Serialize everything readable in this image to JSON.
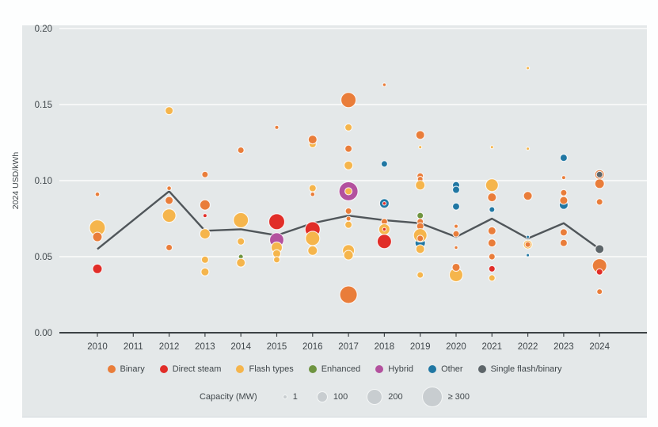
{
  "chart_data": {
    "type": "scatter",
    "title": "",
    "ylabel": "2024 USD/kWh",
    "ylim": [
      0.0,
      0.2
    ],
    "y_ticks": [
      "0.00",
      "0.05",
      "0.10",
      "0.15",
      "0.20"
    ],
    "grid": true,
    "years": [
      2010,
      2011,
      2012,
      2013,
      2014,
      2015,
      2016,
      2017,
      2018,
      2019,
      2020,
      2021,
      2022,
      2023,
      2024
    ],
    "categories": [
      {
        "key": "binary",
        "label": "Binary",
        "color": "#e97d3a"
      },
      {
        "key": "direct",
        "label": "Direct steam",
        "color": "#e12d28"
      },
      {
        "key": "flash",
        "label": "Flash types",
        "color": "#f5b54c"
      },
      {
        "key": "enhanced",
        "label": "Enhanced",
        "color": "#6e9440"
      },
      {
        "key": "hybrid",
        "label": "Hybrid",
        "color": "#b3519e"
      },
      {
        "key": "other",
        "label": "Other",
        "color": "#2077a3"
      },
      {
        "key": "single",
        "label": "Single flash/binary",
        "color": "#5d6569"
      }
    ],
    "trend_line": {
      "color": "#50565a",
      "values": [
        0.055,
        0.074,
        0.093,
        0.067,
        0.068,
        0.064,
        0.072,
        0.077,
        0.074,
        0.072,
        0.063,
        0.075,
        0.062,
        0.072,
        0.055
      ]
    },
    "bubbles": [
      {
        "y": 2010,
        "v": 0.091,
        "c": "binary",
        "r": 2.8
      },
      {
        "y": 2010,
        "v": 0.069,
        "c": "flash",
        "r": 10
      },
      {
        "y": 2010,
        "v": 0.063,
        "c": "binary",
        "r": 6
      },
      {
        "y": 2010,
        "v": 0.042,
        "c": "direct",
        "r": 6
      },
      {
        "y": 2012,
        "v": 0.146,
        "c": "flash",
        "r": 5
      },
      {
        "y": 2012,
        "v": 0.095,
        "c": "binary",
        "r": 2.8
      },
      {
        "y": 2012,
        "v": 0.087,
        "c": "binary",
        "r": 5
      },
      {
        "y": 2012,
        "v": 0.077,
        "c": "flash",
        "r": 8.5
      },
      {
        "y": 2012,
        "v": 0.056,
        "c": "binary",
        "r": 4
      },
      {
        "y": 2013,
        "v": 0.104,
        "c": "binary",
        "r": 4
      },
      {
        "y": 2013,
        "v": 0.084,
        "c": "binary",
        "r": 6.5
      },
      {
        "y": 2013,
        "v": 0.077,
        "c": "direct",
        "r": 2.5
      },
      {
        "y": 2013,
        "v": 0.065,
        "c": "flash",
        "r": 6.5
      },
      {
        "y": 2013,
        "v": 0.048,
        "c": "flash",
        "r": 4.5
      },
      {
        "y": 2013,
        "v": 0.04,
        "c": "flash",
        "r": 5
      },
      {
        "y": 2014,
        "v": 0.12,
        "c": "binary",
        "r": 4
      },
      {
        "y": 2014,
        "v": 0.074,
        "c": "flash",
        "r": 9.5
      },
      {
        "y": 2014,
        "v": 0.06,
        "c": "flash",
        "r": 4.5
      },
      {
        "y": 2014,
        "v": 0.05,
        "c": "enhanced",
        "r": 3
      },
      {
        "y": 2014,
        "v": 0.046,
        "c": "flash",
        "r": 5.5
      },
      {
        "y": 2015,
        "v": 0.135,
        "c": "binary",
        "r": 2.5
      },
      {
        "y": 2015,
        "v": 0.073,
        "c": "direct",
        "r": 10
      },
      {
        "y": 2015,
        "v": 0.061,
        "c": "hybrid",
        "r": 9
      },
      {
        "y": 2015,
        "v": 0.056,
        "c": "flash",
        "r": 7
      },
      {
        "y": 2015,
        "v": 0.052,
        "c": "flash",
        "r": 5
      },
      {
        "y": 2015,
        "v": 0.048,
        "c": "flash",
        "r": 4
      },
      {
        "y": 2016,
        "v": 0.124,
        "c": "flash",
        "r": 4.5
      },
      {
        "y": 2016,
        "v": 0.127,
        "c": "binary",
        "r": 5.5
      },
      {
        "y": 2016,
        "v": 0.095,
        "c": "flash",
        "r": 4.5
      },
      {
        "y": 2016,
        "v": 0.091,
        "c": "binary",
        "r": 2.8
      },
      {
        "y": 2016,
        "v": 0.068,
        "c": "direct",
        "r": 9.5
      },
      {
        "y": 2016,
        "v": 0.062,
        "c": "flash",
        "r": 9
      },
      {
        "y": 2016,
        "v": 0.054,
        "c": "flash",
        "r": 6
      },
      {
        "y": 2017,
        "v": 0.153,
        "c": "binary",
        "r": 9.5
      },
      {
        "y": 2017,
        "v": 0.135,
        "c": "flash",
        "r": 4.5
      },
      {
        "y": 2017,
        "v": 0.121,
        "c": "binary",
        "r": 4.5
      },
      {
        "y": 2017,
        "v": 0.11,
        "c": "flash",
        "r": 5.5
      },
      {
        "y": 2017,
        "v": 0.093,
        "c": "hybrid",
        "r": 12
      },
      {
        "y": 2017,
        "v": 0.093,
        "c": "flash",
        "r": 4.5
      },
      {
        "y": 2017,
        "v": 0.08,
        "c": "binary",
        "r": 4
      },
      {
        "y": 2017,
        "v": 0.075,
        "c": "binary",
        "r": 3
      },
      {
        "y": 2017,
        "v": 0.071,
        "c": "flash",
        "r": 4.5
      },
      {
        "y": 2017,
        "v": 0.054,
        "c": "flash",
        "r": 7.5
      },
      {
        "y": 2017,
        "v": 0.051,
        "c": "flash",
        "r": 6
      },
      {
        "y": 2017,
        "v": 0.025,
        "c": "binary",
        "r": 11
      },
      {
        "y": 2018,
        "v": 0.163,
        "c": "binary",
        "r": 2.2
      },
      {
        "y": 2018,
        "v": 0.111,
        "c": "other",
        "r": 4
      },
      {
        "y": 2018,
        "v": 0.085,
        "c": "other",
        "r": 6
      },
      {
        "y": 2018,
        "v": 0.085,
        "c": "direct",
        "r": 2.2
      },
      {
        "y": 2018,
        "v": 0.073,
        "c": "binary",
        "r": 4
      },
      {
        "y": 2018,
        "v": 0.068,
        "c": "flash",
        "r": 7
      },
      {
        "y": 2018,
        "v": 0.068,
        "c": "direct",
        "r": 2.2
      },
      {
        "y": 2018,
        "v": 0.06,
        "c": "direct",
        "r": 9
      },
      {
        "y": 2019,
        "v": 0.13,
        "c": "binary",
        "r": 5.5
      },
      {
        "y": 2019,
        "v": 0.122,
        "c": "flash",
        "r": 2
      },
      {
        "y": 2019,
        "v": 0.103,
        "c": "binary",
        "r": 4
      },
      {
        "y": 2019,
        "v": 0.101,
        "c": "binary",
        "r": 3.5
      },
      {
        "y": 2019,
        "v": 0.097,
        "c": "flash",
        "r": 6
      },
      {
        "y": 2019,
        "v": 0.077,
        "c": "enhanced",
        "r": 4
      },
      {
        "y": 2019,
        "v": 0.073,
        "c": "binary",
        "r": 4
      },
      {
        "y": 2019,
        "v": 0.07,
        "c": "binary",
        "r": 4.5
      },
      {
        "y": 2019,
        "v": 0.059,
        "c": "other",
        "r": 6.5
      },
      {
        "y": 2019,
        "v": 0.064,
        "c": "flash",
        "r": 8.5
      },
      {
        "y": 2019,
        "v": 0.062,
        "c": "binary",
        "r": 4
      },
      {
        "y": 2019,
        "v": 0.055,
        "c": "flash",
        "r": 5.5
      },
      {
        "y": 2019,
        "v": 0.038,
        "c": "flash",
        "r": 4
      },
      {
        "y": 2020,
        "v": 0.097,
        "c": "other",
        "r": 4.5
      },
      {
        "y": 2020,
        "v": 0.094,
        "c": "other",
        "r": 4.5
      },
      {
        "y": 2020,
        "v": 0.083,
        "c": "other",
        "r": 4.5
      },
      {
        "y": 2020,
        "v": 0.07,
        "c": "binary",
        "r": 2.5
      },
      {
        "y": 2020,
        "v": 0.065,
        "c": "binary",
        "r": 4
      },
      {
        "y": 2020,
        "v": 0.056,
        "c": "binary",
        "r": 2.2
      },
      {
        "y": 2020,
        "v": 0.038,
        "c": "flash",
        "r": 8.5
      },
      {
        "y": 2020,
        "v": 0.043,
        "c": "binary",
        "r": 5
      },
      {
        "y": 2021,
        "v": 0.122,
        "c": "flash",
        "r": 2
      },
      {
        "y": 2021,
        "v": 0.097,
        "c": "flash",
        "r": 8
      },
      {
        "y": 2021,
        "v": 0.089,
        "c": "binary",
        "r": 5.5
      },
      {
        "y": 2021,
        "v": 0.081,
        "c": "other",
        "r": 3.5
      },
      {
        "y": 2021,
        "v": 0.067,
        "c": "binary",
        "r": 5
      },
      {
        "y": 2021,
        "v": 0.059,
        "c": "binary",
        "r": 5
      },
      {
        "y": 2021,
        "v": 0.05,
        "c": "binary",
        "r": 4
      },
      {
        "y": 2021,
        "v": 0.042,
        "c": "direct",
        "r": 4
      },
      {
        "y": 2021,
        "v": 0.036,
        "c": "flash",
        "r": 4
      },
      {
        "y": 2022,
        "v": 0.174,
        "c": "flash",
        "r": 2
      },
      {
        "y": 2022,
        "v": 0.121,
        "c": "flash",
        "r": 2
      },
      {
        "y": 2022,
        "v": 0.09,
        "c": "binary",
        "r": 5.5
      },
      {
        "y": 2022,
        "v": 0.063,
        "c": "other",
        "r": 2
      },
      {
        "y": 2022,
        "v": 0.058,
        "c": "flash",
        "r": 5.5
      },
      {
        "y": 2022,
        "v": 0.058,
        "c": "binary",
        "r": 3.5
      },
      {
        "y": 2022,
        "v": 0.051,
        "c": "other",
        "r": 2
      },
      {
        "y": 2023,
        "v": 0.115,
        "c": "other",
        "r": 4.5
      },
      {
        "y": 2023,
        "v": 0.102,
        "c": "binary",
        "r": 2.5
      },
      {
        "y": 2023,
        "v": 0.084,
        "c": "other",
        "r": 5.5
      },
      {
        "y": 2023,
        "v": 0.092,
        "c": "binary",
        "r": 4
      },
      {
        "y": 2023,
        "v": 0.087,
        "c": "binary",
        "r": 5
      },
      {
        "y": 2023,
        "v": 0.066,
        "c": "binary",
        "r": 4.5
      },
      {
        "y": 2023,
        "v": 0.059,
        "c": "binary",
        "r": 4.5
      },
      {
        "y": 2024,
        "v": 0.104,
        "c": "binary",
        "r": 6
      },
      {
        "y": 2024,
        "v": 0.104,
        "c": "single",
        "r": 4
      },
      {
        "y": 2024,
        "v": 0.098,
        "c": "binary",
        "r": 6
      },
      {
        "y": 2024,
        "v": 0.086,
        "c": "binary",
        "r": 4
      },
      {
        "y": 2024,
        "v": 0.044,
        "c": "binary",
        "r": 9
      },
      {
        "y": 2024,
        "v": 0.04,
        "c": "direct",
        "r": 4
      },
      {
        "y": 2024,
        "v": 0.027,
        "c": "binary",
        "r": 3.5
      },
      {
        "y": 2024,
        "v": 0.055,
        "c": "single",
        "r": 5.5
      }
    ],
    "capacity_legend": {
      "label": "Capacity (MW)",
      "items": [
        {
          "label": "1",
          "r": 2
        },
        {
          "label": "100",
          "r": 6
        },
        {
          "label": "200",
          "r": 9
        },
        {
          "label": "≥ 300",
          "r": 12
        }
      ]
    }
  }
}
